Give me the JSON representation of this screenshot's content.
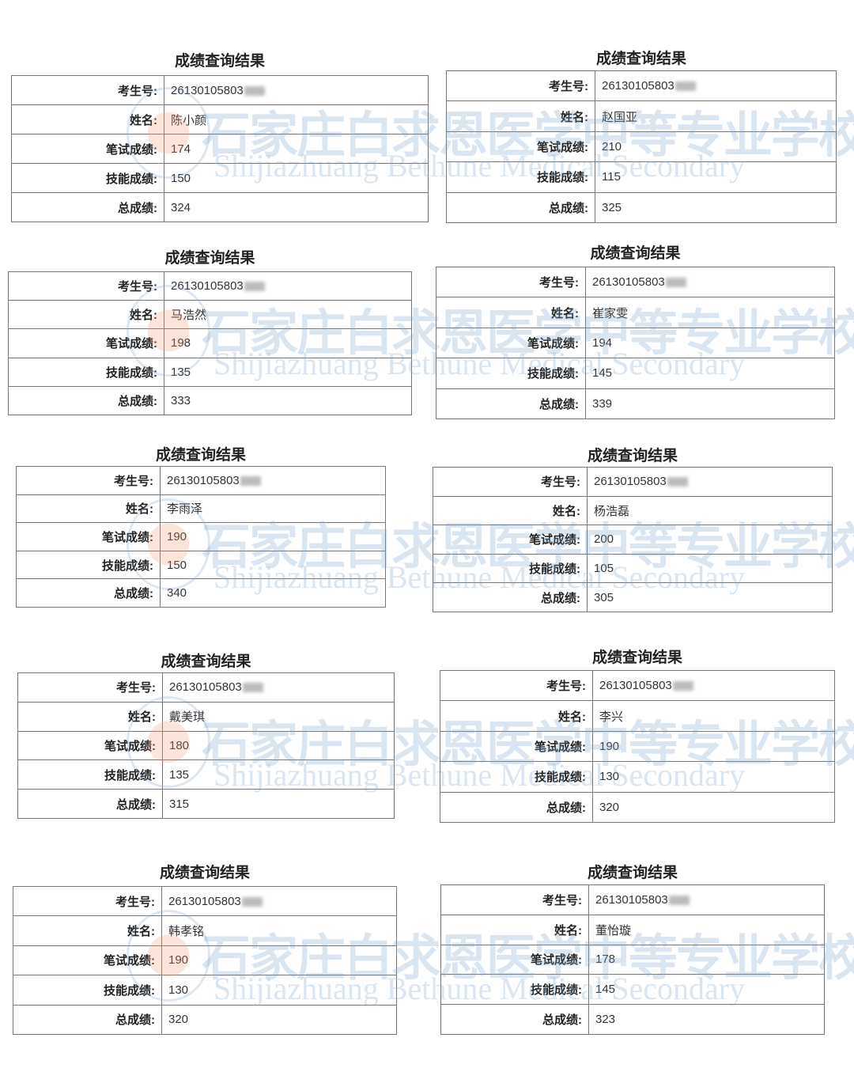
{
  "watermark": {
    "cn": "石家庄白求恩医学中等专业学校",
    "en": "Shijiazhuang Bethune Medical Secondary",
    "color": "#78a0c8"
  },
  "labels": {
    "id": "考生号:",
    "name": "姓名:",
    "written": "笔试成绩:",
    "skill": "技能成绩:",
    "total": "总成绩:"
  },
  "cards": [
    {
      "title": "成绩查询结果",
      "id": "26130105803",
      "name": "陈小颜",
      "written": "174",
      "skill": "150",
      "total": "324"
    },
    {
      "title": "成绩查询结果",
      "id": "26130105803",
      "name": "赵国亚",
      "written": "210",
      "skill": "115",
      "total": "325"
    },
    {
      "title": "成绩查询结果",
      "id": "26130105803",
      "name": "马浩然",
      "written": "198",
      "skill": "135",
      "total": "333"
    },
    {
      "title": "成绩查询结果",
      "id": "26130105803",
      "name": "崔家雯",
      "written": "194",
      "skill": "145",
      "total": "339"
    },
    {
      "title": "成绩查询结果",
      "id": "26130105803",
      "name": "李雨泽",
      "written": "190",
      "skill": "150",
      "total": "340"
    },
    {
      "title": "成绩查询结果",
      "id": "26130105803",
      "name": "杨浩磊",
      "written": "200",
      "skill": "105",
      "total": "305"
    },
    {
      "title": "成绩查询结果",
      "id": "26130105803",
      "name": "戴美琪",
      "written": "180",
      "skill": "135",
      "total": "315"
    },
    {
      "title": "成绩查询结果",
      "id": "26130105803",
      "name": "李兴",
      "written": "190",
      "skill": "130",
      "total": "320"
    },
    {
      "title": "成绩查询结果",
      "id": "26130105803",
      "name": "韩孝铭",
      "written": "190",
      "skill": "130",
      "total": "320"
    },
    {
      "title": "成绩查询结果",
      "id": "26130105803",
      "name": "董怡璇",
      "written": "178",
      "skill": "145",
      "total": "323"
    }
  ]
}
